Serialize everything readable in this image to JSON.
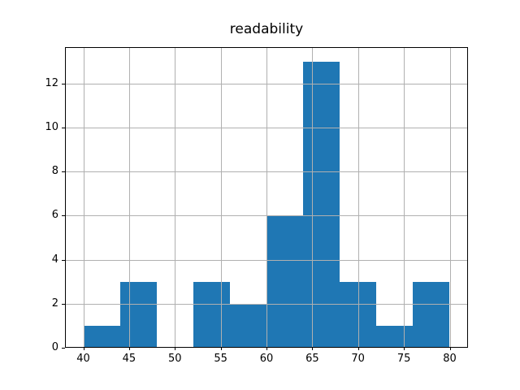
{
  "figure": {
    "background": "#ffffff"
  },
  "chart_data": {
    "type": "bar",
    "title": "readability",
    "xlabel": "",
    "ylabel": "",
    "bin_edges": [
      40,
      44,
      48,
      52,
      56,
      60,
      64,
      68,
      72,
      76,
      80
    ],
    "values": [
      1,
      3,
      0,
      3,
      2,
      6,
      13,
      3,
      1,
      3
    ],
    "xticks": [
      40,
      45,
      50,
      55,
      60,
      65,
      70,
      75,
      80
    ],
    "yticks": [
      0,
      2,
      4,
      6,
      8,
      10,
      12
    ],
    "xlim": [
      38,
      82
    ],
    "ylim": [
      0,
      13.65
    ],
    "grid": true,
    "grid_above_bars": true,
    "legend_position": "none",
    "colors": {
      "bar": "#1f77b4",
      "grid": "#b0b0b0",
      "spine": "#000000",
      "tick_label": "#000000",
      "title": "#000000"
    }
  }
}
